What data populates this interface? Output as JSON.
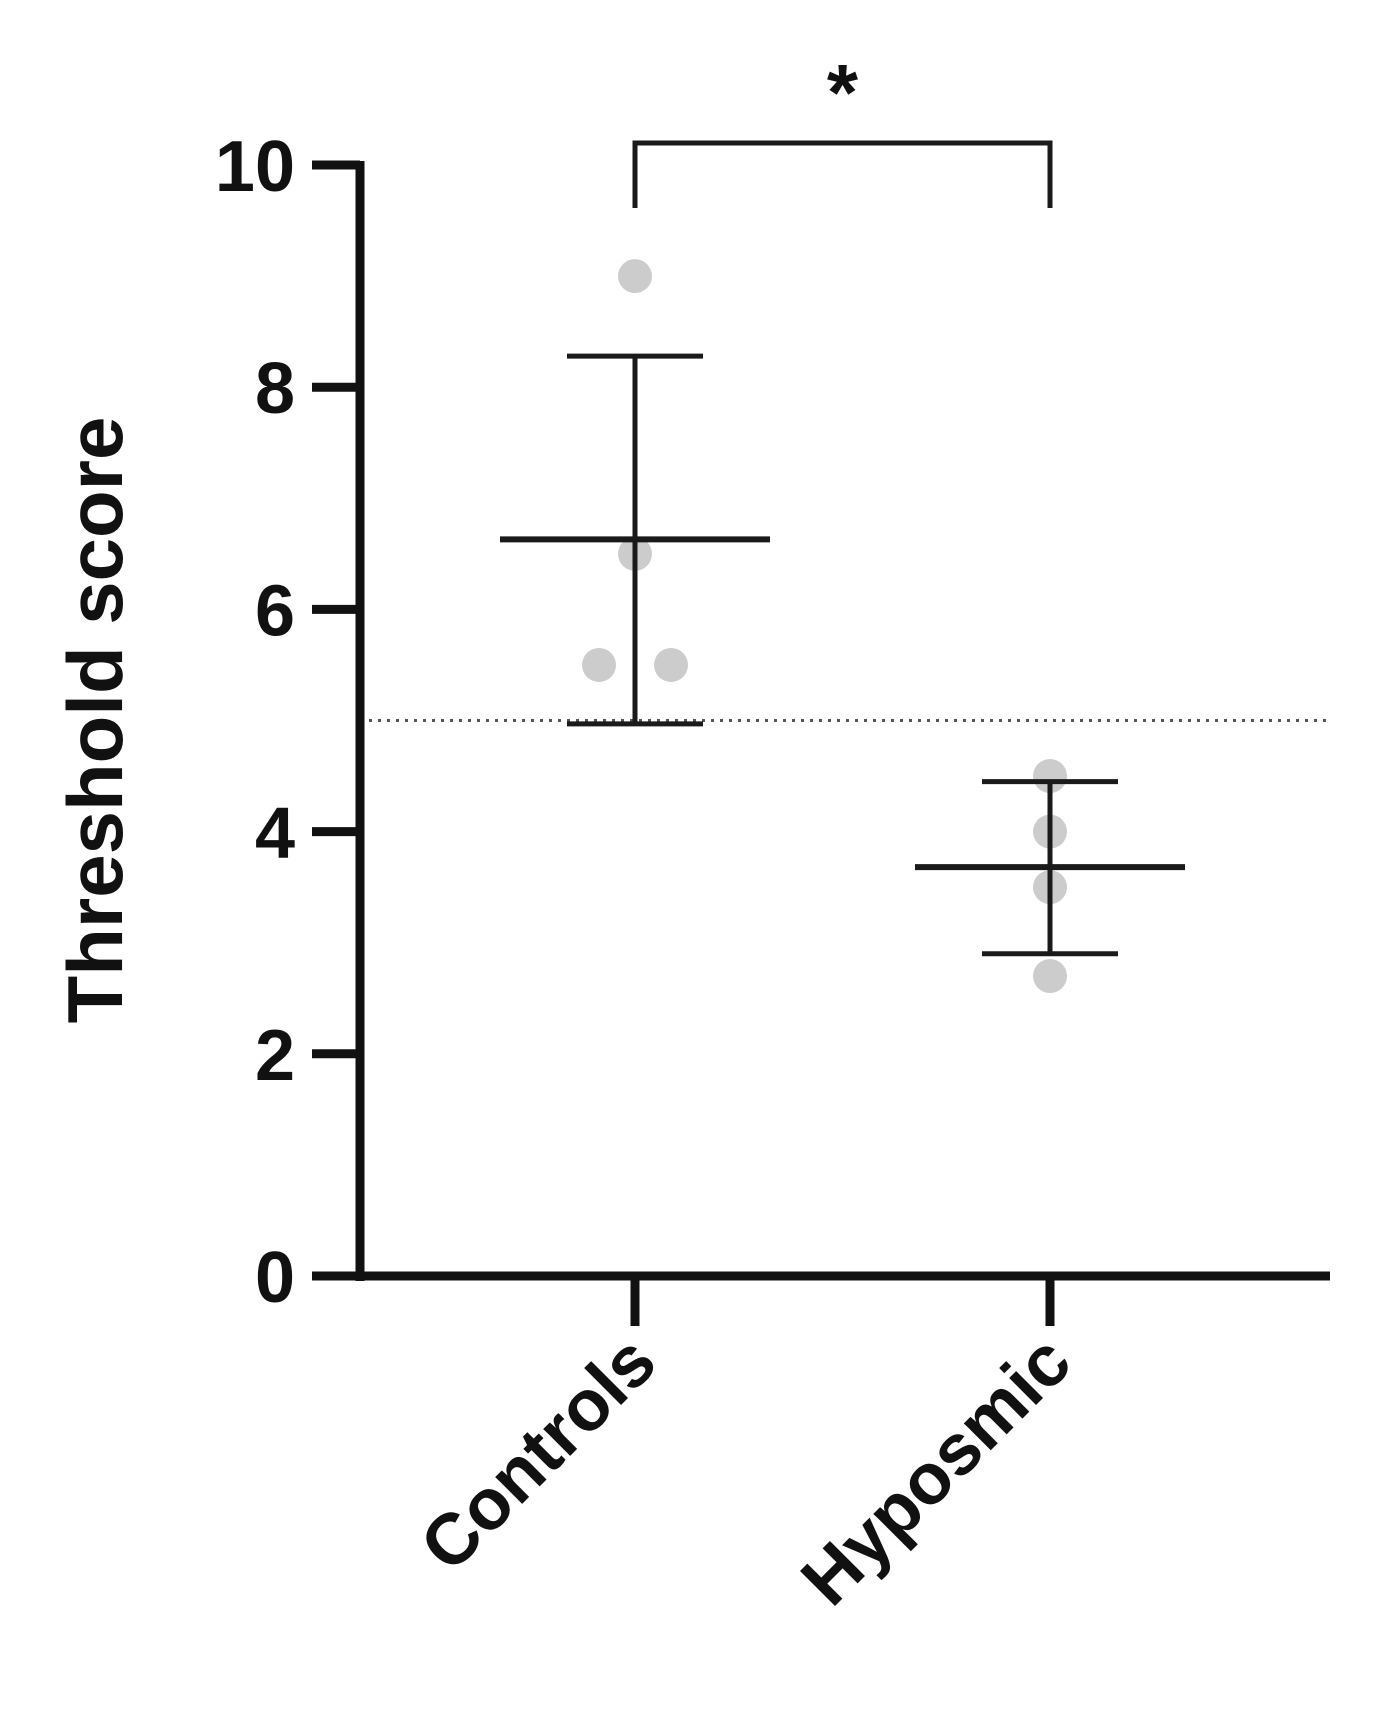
{
  "chart_data": {
    "type": "scatter",
    "ylabel": "Threshold score",
    "ylim": [
      0,
      10
    ],
    "yticks": [
      "0",
      "2",
      "4",
      "6",
      "8",
      "10"
    ],
    "categories": [
      "Controls",
      "Hyposmic"
    ],
    "reference_line": 5,
    "significance": {
      "label": "*",
      "between": [
        "Controls",
        "Hyposmic"
      ]
    },
    "groups": [
      {
        "category": "Controls",
        "points": [
          9.0,
          6.5,
          5.5,
          5.5
        ],
        "mean": 6.63,
        "error_upper": 8.28,
        "error_lower": 4.97
      },
      {
        "category": "Hyposmic",
        "points": [
          4.5,
          4.0,
          3.5,
          2.7
        ],
        "mean": 3.68,
        "error_upper": 4.45,
        "error_lower": 2.9
      }
    ],
    "colors": {
      "points": "#cccccc",
      "lines": "#1a1a1a",
      "axis": "#111111",
      "reference": "#555555"
    }
  }
}
